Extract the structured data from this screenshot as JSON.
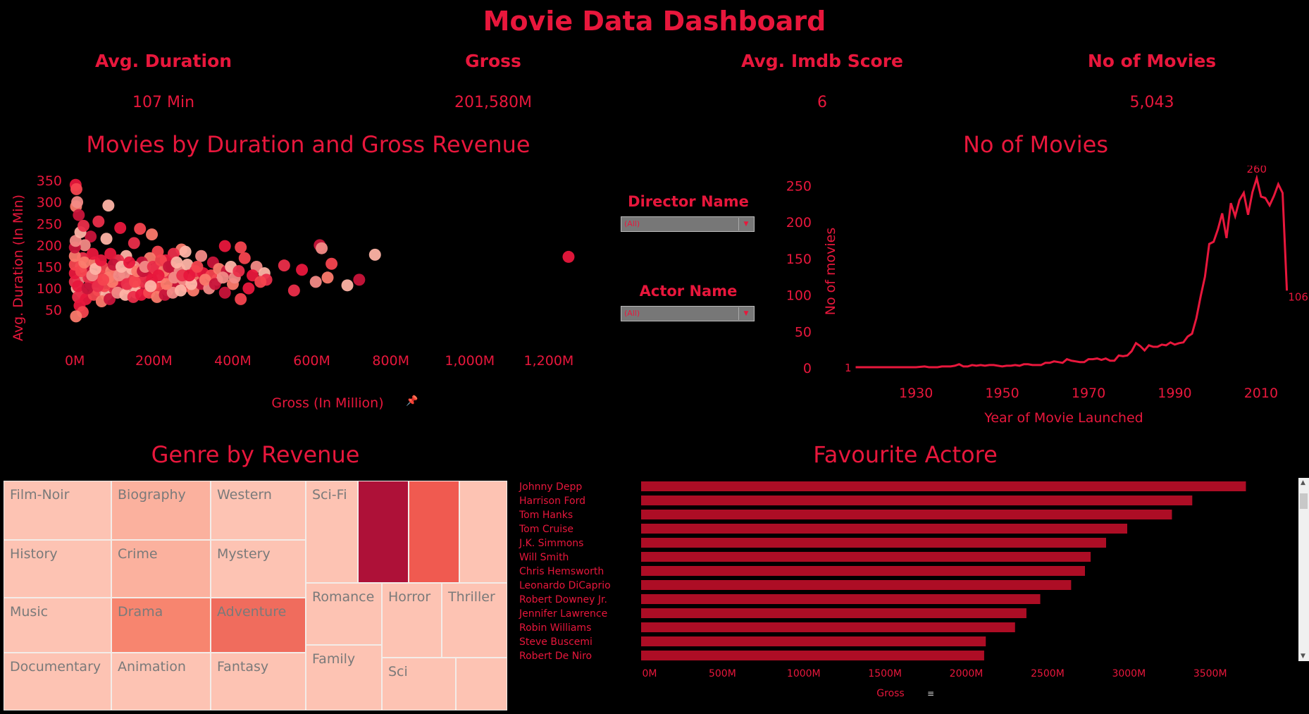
{
  "dashboard": {
    "title": "Movie Data Dashboard"
  },
  "kpis": [
    {
      "label": "Avg. Duration",
      "value": "107 Min"
    },
    {
      "label": "Gross",
      "value": "201,580M"
    },
    {
      "label": "Avg. Imdb Score",
      "value": "6"
    },
    {
      "label": "No of Movies",
      "value": "5,043"
    }
  ],
  "filters": [
    {
      "label": "Director Name",
      "value": "(All)"
    },
    {
      "label": "Actor  Name",
      "value": "(All)"
    }
  ],
  "colors": {
    "accent": "#e8173c",
    "bar": "#ad0d25",
    "background": "#000000"
  },
  "chart_data": [
    {
      "type": "scatter",
      "title": "Movies by Duration and Gross Revenue",
      "xlabel": "Gross (In Million)",
      "ylabel": "Avg. Duration (In Min)",
      "xlim": [
        -20,
        1300
      ],
      "ylim": [
        25,
        360
      ],
      "xticks": [
        0,
        200,
        400,
        600,
        800,
        1000,
        1200
      ],
      "xtick_labels": [
        "0M",
        "200M",
        "400M",
        "600M",
        "800M",
        "1,000M",
        "1,200M"
      ],
      "yticks": [
        50,
        100,
        150,
        200,
        250,
        300,
        350
      ],
      "points": [
        [
          2,
          340
        ],
        [
          4,
          330
        ],
        [
          3,
          290
        ],
        [
          10,
          270
        ],
        [
          6,
          300
        ],
        [
          85,
          292
        ],
        [
          60,
          255
        ],
        [
          115,
          240
        ],
        [
          165,
          238
        ],
        [
          195,
          225
        ],
        [
          40,
          220
        ],
        [
          25,
          200
        ],
        [
          80,
          215
        ],
        [
          150,
          205
        ],
        [
          380,
          198
        ],
        [
          420,
          195
        ],
        [
          270,
          190
        ],
        [
          620,
          200
        ],
        [
          625,
          193
        ],
        [
          760,
          178
        ],
        [
          530,
          153
        ],
        [
          575,
          143
        ],
        [
          650,
          157
        ],
        [
          640,
          125
        ],
        [
          720,
          120
        ],
        [
          610,
          115
        ],
        [
          690,
          107
        ],
        [
          555,
          95
        ],
        [
          1250,
          173
        ],
        [
          420,
          75
        ],
        [
          300,
          125
        ],
        [
          350,
          160
        ],
        [
          460,
          150
        ],
        [
          480,
          135
        ],
        [
          485,
          120
        ],
        [
          450,
          130
        ],
        [
          430,
          170
        ],
        [
          400,
          110
        ],
        [
          380,
          90
        ],
        [
          320,
          175
        ],
        [
          280,
          185
        ],
        [
          250,
          180
        ],
        [
          230,
          165
        ],
        [
          210,
          185
        ],
        [
          190,
          170
        ],
        [
          170,
          160
        ],
        [
          150,
          150
        ],
        [
          130,
          175
        ],
        [
          110,
          165
        ],
        [
          90,
          180
        ],
        [
          70,
          150
        ],
        [
          50,
          160
        ],
        [
          30,
          140
        ],
        [
          10,
          120
        ],
        [
          5,
          100
        ],
        [
          8,
          80
        ],
        [
          12,
          60
        ],
        [
          20,
          45
        ],
        [
          3,
          35
        ],
        [
          40,
          110
        ],
        [
          60,
          95
        ],
        [
          80,
          85
        ],
        [
          100,
          100
        ],
        [
          120,
          115
        ],
        [
          140,
          120
        ],
        [
          160,
          105
        ],
        [
          180,
          95
        ],
        [
          200,
          110
        ],
        [
          220,
          125
        ],
        [
          240,
          130
        ],
        [
          260,
          115
        ],
        [
          280,
          105
        ],
        [
          300,
          95
        ],
        [
          320,
          110
        ],
        [
          340,
          100
        ],
        [
          360,
          120
        ],
        [
          20,
          170
        ],
        [
          45,
          180
        ],
        [
          65,
          130
        ],
        [
          85,
          125
        ],
        [
          105,
          140
        ],
        [
          125,
          135
        ],
        [
          145,
          145
        ],
        [
          165,
          130
        ],
        [
          185,
          135
        ],
        [
          205,
          145
        ],
        [
          225,
          140
        ],
        [
          245,
          150
        ],
        [
          265,
          145
        ],
        [
          285,
          155
        ],
        [
          305,
          140
        ],
        [
          325,
          135
        ],
        [
          345,
          130
        ],
        [
          365,
          145
        ],
        [
          385,
          140
        ],
        [
          405,
          125
        ],
        [
          15,
          150
        ],
        [
          35,
          125
        ],
        [
          55,
          115
        ],
        [
          75,
          105
        ],
        [
          95,
          115
        ],
        [
          115,
          95
        ],
        [
          135,
          100
        ],
        [
          155,
          90
        ],
        [
          175,
          115
        ],
        [
          195,
          120
        ],
        [
          215,
          100
        ],
        [
          235,
          95
        ],
        [
          255,
          105
        ],
        [
          275,
          120
        ],
        [
          295,
          110
        ],
        [
          18,
          90
        ],
        [
          28,
          75
        ],
        [
          48,
          85
        ],
        [
          68,
          70
        ],
        [
          88,
          75
        ],
        [
          108,
          90
        ],
        [
          128,
          85
        ],
        [
          148,
          80
        ],
        [
          168,
          85
        ],
        [
          188,
          90
        ],
        [
          208,
          80
        ],
        [
          228,
          85
        ],
        [
          248,
          90
        ],
        [
          268,
          95
        ],
        [
          0,
          115
        ],
        [
          0,
          135
        ],
        [
          0,
          155
        ],
        [
          0,
          175
        ],
        [
          0,
          195
        ],
        [
          2,
          210
        ],
        [
          14,
          230
        ],
        [
          22,
          245
        ],
        [
          8,
          105
        ],
        [
          16,
          140
        ],
        [
          24,
          160
        ],
        [
          32,
          100
        ],
        [
          44,
          130
        ],
        [
          52,
          145
        ],
        [
          58,
          105
        ],
        [
          66,
          165
        ],
        [
          72,
          120
        ],
        [
          92,
          140
        ],
        [
          98,
          155
        ],
        [
          112,
          130
        ],
        [
          118,
          150
        ],
        [
          132,
          110
        ],
        [
          138,
          160
        ],
        [
          152,
          115
        ],
        [
          158,
          140
        ],
        [
          172,
          140
        ],
        [
          178,
          150
        ],
        [
          192,
          105
        ],
        [
          198,
          150
        ],
        [
          212,
          130
        ],
        [
          218,
          165
        ],
        [
          232,
          110
        ],
        [
          238,
          150
        ],
        [
          252,
          125
        ],
        [
          258,
          160
        ],
        [
          272,
          130
        ],
        [
          290,
          130
        ],
        [
          310,
          150
        ],
        [
          330,
          120
        ],
        [
          355,
          110
        ],
        [
          375,
          125
        ],
        [
          395,
          150
        ],
        [
          415,
          140
        ],
        [
          440,
          100
        ],
        [
          470,
          115
        ]
      ]
    },
    {
      "type": "line",
      "title": "No of Movies",
      "xlabel": "Year of Movie Launched",
      "ylabel": "No of movies",
      "xlim": [
        1912,
        2019
      ],
      "ylim": [
        0,
        260
      ],
      "xticks": [
        1930,
        1950,
        1970,
        1990,
        2010
      ],
      "yticks": [
        0,
        50,
        100,
        150,
        200,
        250
      ],
      "data_labels": [
        {
          "x": 1916,
          "y": 1,
          "label": "1"
        },
        {
          "x": 2009,
          "y": 260,
          "label": "260"
        },
        {
          "x": 2016,
          "y": 106,
          "label": "106"
        }
      ],
      "x": [
        1916,
        1920,
        1925,
        1927,
        1929,
        1930,
        1932,
        1933,
        1935,
        1936,
        1937,
        1938,
        1939,
        1940,
        1941,
        1942,
        1943,
        1944,
        1945,
        1946,
        1947,
        1948,
        1949,
        1950,
        1951,
        1952,
        1953,
        1954,
        1955,
        1956,
        1957,
        1958,
        1959,
        1960,
        1961,
        1962,
        1963,
        1964,
        1965,
        1966,
        1967,
        1968,
        1969,
        1970,
        1971,
        1972,
        1973,
        1974,
        1975,
        1976,
        1977,
        1978,
        1979,
        1980,
        1981,
        1982,
        1983,
        1984,
        1985,
        1986,
        1987,
        1988,
        1989,
        1990,
        1991,
        1992,
        1993,
        1994,
        1995,
        1996,
        1997,
        1998,
        1999,
        2000,
        2001,
        2002,
        2003,
        2004,
        2005,
        2006,
        2007,
        2008,
        2009,
        2010,
        2011,
        2012,
        2013,
        2014,
        2015,
        2016
      ],
      "y": [
        1,
        1,
        1,
        1,
        1,
        1,
        2,
        1,
        1,
        2,
        2,
        2,
        3,
        5,
        2,
        2,
        4,
        3,
        4,
        3,
        4,
        4,
        3,
        2,
        3,
        3,
        4,
        3,
        5,
        5,
        4,
        4,
        4,
        7,
        7,
        9,
        8,
        7,
        12,
        10,
        9,
        8,
        8,
        12,
        12,
        13,
        11,
        13,
        10,
        10,
        17,
        16,
        17,
        23,
        34,
        30,
        24,
        31,
        29,
        29,
        32,
        31,
        35,
        32,
        34,
        35,
        43,
        47,
        68,
        98,
        125,
        170,
        173,
        190,
        212,
        178,
        226,
        208,
        230,
        240,
        210,
        241,
        260,
        235,
        233,
        223,
        236,
        252,
        240,
        106
      ]
    },
    {
      "type": "table",
      "title": "Genre by Revenue",
      "cells": [
        "Film-Noir",
        "Biography",
        "Western",
        "Sci-Fi",
        "History",
        "Crime",
        "Mystery",
        "Music",
        "Drama",
        "Adventure",
        "Documentary",
        "Animation",
        "Fantasy",
        "Romance",
        "Horror",
        "Thriller",
        "Family",
        "Sci"
      ]
    },
    {
      "type": "bar",
      "title": "Favourite Actore",
      "xlabel": "Gross",
      "xlim": [
        0,
        3900
      ],
      "xticks": [
        0,
        500,
        1000,
        1500,
        2000,
        2500,
        3000,
        3500
      ],
      "xtick_labels": [
        "0M",
        "500M",
        "1000M",
        "1500M",
        "2000M",
        "2500M",
        "3000M",
        "3500M"
      ],
      "categories": [
        "Johnny Depp",
        "Harrison Ford",
        "Tom Hanks",
        "Tom Cruise",
        "J.K. Simmons",
        "Will Smith",
        "Chris Hemsworth",
        "Leonardo DiCaprio",
        "Robert Downey Jr.",
        "Jennifer Lawrence",
        "Robin Williams",
        "Steve Buscemi",
        "Robert De Niro"
      ],
      "values": [
        3720,
        3390,
        3265,
        2990,
        2860,
        2765,
        2730,
        2645,
        2455,
        2370,
        2300,
        2120,
        2110
      ]
    }
  ]
}
